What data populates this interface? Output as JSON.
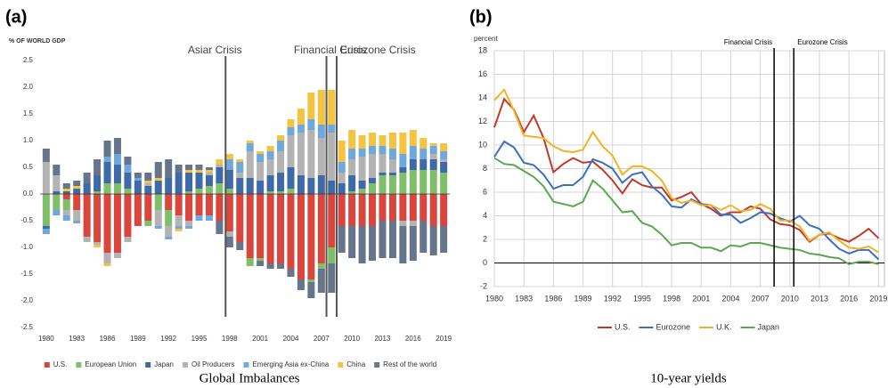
{
  "chart_data": [
    {
      "type": "stacked-bar",
      "panel_label": "(a)",
      "caption": "Global Imbalances",
      "y_label": "% OF WORLD GDP",
      "x": [
        1980,
        1981,
        1982,
        1983,
        1984,
        1985,
        1986,
        1987,
        1988,
        1989,
        1990,
        1991,
        1992,
        1993,
        1994,
        1995,
        1996,
        1997,
        1998,
        1999,
        2000,
        2001,
        2002,
        2003,
        2004,
        2005,
        2006,
        2007,
        2008,
        2009,
        2010,
        2011,
        2012,
        2013,
        2014,
        2015,
        2016,
        2017,
        2018,
        2019
      ],
      "xlim": [
        1979.4,
        2019.6
      ],
      "xticks": [
        1980,
        1983,
        1986,
        1989,
        1992,
        1995,
        1998,
        2001,
        2004,
        2007,
        2010,
        2013,
        2016,
        2019
      ],
      "ylim": [
        -2.5,
        2.5
      ],
      "yticks": [
        2.5,
        {
          "value": 2,
          "label": "2.0"
        },
        1.5,
        {
          "value": 1,
          "label": "1.0"
        },
        0.5,
        {
          "value": 0,
          "label": "0.0"
        },
        -0.5,
        {
          "value": -1,
          "label": "-1.0"
        },
        -1.5,
        {
          "value": -2,
          "label": "-2.0"
        },
        -2.5
      ],
      "grid": false,
      "series": [
        {
          "name": "U.S.",
          "color": "#d9463e",
          "values": [
            0,
            0,
            -0.1,
            -0.3,
            -0.8,
            -0.9,
            -1.1,
            -1.1,
            -0.8,
            -0.6,
            -0.5,
            0,
            -0.3,
            -0.4,
            -0.5,
            -0.4,
            -0.4,
            -0.5,
            -0.7,
            -0.9,
            -1.2,
            -1.2,
            -1.3,
            -1.3,
            -1.4,
            -1.6,
            -1.6,
            -1.3,
            -1.0,
            -0.6,
            -0.6,
            -0.6,
            -0.6,
            -0.5,
            -0.5,
            -0.5,
            -0.5,
            -0.5,
            -0.6,
            -0.6
          ]
        },
        {
          "name": "European Union",
          "color": "#7fbf6a",
          "values": [
            -0.6,
            -0.3,
            -0.2,
            0,
            0,
            0.05,
            0.2,
            0.2,
            0.1,
            0,
            -0.1,
            -0.3,
            -0.3,
            0,
            0.05,
            0.1,
            0.15,
            0.2,
            0.1,
            0,
            -0.15,
            -0.05,
            0.05,
            0.05,
            0.1,
            0,
            -0.05,
            -0.1,
            -0.3,
            0,
            0.05,
            0.1,
            0.2,
            0.35,
            0.35,
            0.4,
            0.45,
            0.45,
            0.45,
            0.4
          ]
        },
        {
          "name": "Japan",
          "color": "#3f6aa8",
          "values": [
            -0.05,
            0.05,
            0.05,
            0.1,
            0.2,
            0.3,
            0.4,
            0.35,
            0.3,
            0.25,
            0.15,
            0.25,
            0.3,
            0.4,
            0.35,
            0.3,
            0.2,
            0.3,
            0.35,
            0.3,
            0.3,
            0.25,
            0.3,
            0.35,
            0.4,
            0.35,
            0.3,
            0.35,
            0.25,
            0.2,
            0.3,
            0.15,
            0.1,
            0.05,
            0.05,
            0.1,
            0.2,
            0.2,
            0.2,
            0.2
          ]
        },
        {
          "name": "Oil Producers",
          "color": "#b3b3b3",
          "values": [
            0.6,
            0.3,
            -0.1,
            -0.2,
            -0.1,
            -0.05,
            -0.2,
            -0.1,
            -0.1,
            0,
            0.05,
            -0.3,
            -0.2,
            -0.2,
            -0.1,
            0,
            0.05,
            0.05,
            -0.1,
            0.1,
            0.5,
            0.35,
            0.3,
            0.4,
            0.6,
            0.8,
            0.9,
            0.7,
            0.9,
            0.2,
            0.3,
            0.45,
            0.45,
            0.35,
            0.25,
            -0.1,
            -0.1,
            0,
            0.1,
            0.05
          ]
        },
        {
          "name": "Emerging Asia ex-China",
          "color": "#6fa8dc",
          "values": [
            -0.1,
            -0.1,
            -0.1,
            -0.05,
            0,
            0,
            0.1,
            0.2,
            0.15,
            0.05,
            0,
            -0.05,
            -0.05,
            -0.05,
            -0.05,
            -0.1,
            -0.1,
            0,
            0.2,
            0.2,
            0.15,
            0.15,
            0.15,
            0.2,
            0.15,
            0.15,
            0.2,
            0.25,
            0.15,
            0.2,
            0.2,
            0.15,
            0.15,
            0.15,
            0.2,
            0.25,
            0.25,
            0.2,
            0.15,
            0.15
          ]
        },
        {
          "name": "China",
          "color": "#f5c342",
          "values": [
            0,
            0,
            0.05,
            0.05,
            0,
            -0.05,
            -0.05,
            0,
            0,
            0,
            0.05,
            0.05,
            0,
            -0.05,
            0.05,
            0.05,
            0.05,
            0.1,
            0.1,
            0.05,
            0.05,
            0.05,
            0.1,
            0.1,
            0.15,
            0.3,
            0.5,
            0.65,
            0.65,
            0.4,
            0.35,
            0.25,
            0.25,
            0.2,
            0.3,
            0.4,
            0.3,
            0.2,
            0.05,
            0.15
          ]
        },
        {
          "name": "Rest of the world",
          "color": "#66758c",
          "values": [
            0.25,
            0.2,
            0.1,
            0.1,
            0.2,
            0.3,
            0.3,
            0.3,
            0.15,
            0.1,
            0.15,
            0.3,
            0.35,
            0.15,
            0.1,
            0.1,
            0.05,
            -0.25,
            -0.2,
            -0.15,
            0,
            -0.1,
            -0.1,
            -0.1,
            -0.15,
            -0.2,
            -0.3,
            -0.45,
            -0.55,
            -0.5,
            -0.6,
            -0.7,
            -0.65,
            -0.7,
            -0.7,
            -0.7,
            -0.65,
            -0.6,
            -0.55,
            -0.5
          ]
        }
      ],
      "annotations": [
        {
          "label": "Asiar Crisis",
          "x": 1997.6
        },
        {
          "label": "Financial Crisis",
          "x": 2007.5
        },
        {
          "label": "Eurozone Crisis",
          "x": 2008.5
        }
      ]
    },
    {
      "type": "line",
      "panel_label": "(b)",
      "caption": "10-year yields",
      "y_label": "percent",
      "x": [
        1980,
        1981,
        1982,
        1983,
        1984,
        1985,
        1986,
        1987,
        1988,
        1989,
        1990,
        1991,
        1992,
        1993,
        1994,
        1995,
        1996,
        1997,
        1998,
        1999,
        2000,
        2001,
        2002,
        2003,
        2004,
        2005,
        2006,
        2007,
        2008,
        2009,
        2010,
        2011,
        2012,
        2013,
        2014,
        2015,
        2016,
        2017,
        2018,
        2019
      ],
      "xlim": [
        1980,
        2019.6
      ],
      "xticks": [
        1980,
        1983,
        1986,
        1989,
        1992,
        1995,
        1998,
        2001,
        2004,
        2007,
        2010,
        2013,
        2016,
        2019
      ],
      "ylim": [
        -2,
        18
      ],
      "yticks": [
        -2,
        0,
        2,
        4,
        6,
        8,
        10,
        12,
        14,
        16,
        18
      ],
      "grid": true,
      "series": [
        {
          "name": "U.S.",
          "color": "#c0392b",
          "values": [
            11.5,
            13.9,
            13.0,
            11.1,
            12.5,
            10.6,
            7.7,
            8.4,
            8.9,
            8.5,
            8.6,
            7.9,
            7.0,
            5.9,
            7.1,
            6.6,
            6.4,
            6.4,
            5.3,
            5.6,
            6.0,
            5.0,
            4.6,
            4.0,
            4.3,
            4.3,
            4.8,
            4.6,
            3.7,
            3.3,
            3.2,
            2.8,
            1.8,
            2.4,
            2.5,
            2.1,
            1.8,
            2.3,
            2.9,
            2.1
          ]
        },
        {
          "name": "Eurozone",
          "color": "#3b6fbf",
          "values": [
            9.0,
            10.3,
            9.8,
            8.5,
            8.3,
            7.5,
            6.3,
            6.6,
            6.6,
            7.3,
            8.8,
            8.5,
            8.0,
            6.8,
            7.5,
            7.7,
            6.5,
            5.8,
            4.8,
            4.7,
            5.4,
            5.0,
            4.9,
            4.1,
            4.1,
            3.4,
            3.8,
            4.3,
            4.2,
            3.8,
            3.5,
            4.0,
            3.2,
            2.9,
            2.0,
            1.2,
            0.8,
            1.1,
            1.1,
            0.3
          ]
        },
        {
          "name": "U.K.",
          "color": "#f0b323",
          "values": [
            13.8,
            14.7,
            12.9,
            10.8,
            10.7,
            10.6,
            9.9,
            9.5,
            9.4,
            9.6,
            11.1,
            9.9,
            9.1,
            7.5,
            8.2,
            8.2,
            7.8,
            7.0,
            5.5,
            5.1,
            5.3,
            4.9,
            4.9,
            4.5,
            4.9,
            4.4,
            4.5,
            5.0,
            4.6,
            3.6,
            3.6,
            3.1,
            1.9,
            2.4,
            2.6,
            1.9,
            1.3,
            1.2,
            1.4,
            0.9
          ]
        },
        {
          "name": "Japan",
          "color": "#5aa84f",
          "values": [
            8.9,
            8.4,
            8.3,
            7.8,
            7.3,
            6.5,
            5.2,
            5.0,
            4.8,
            5.2,
            7.0,
            6.3,
            5.3,
            4.3,
            4.4,
            3.4,
            3.1,
            2.4,
            1.5,
            1.7,
            1.7,
            1.3,
            1.3,
            1.0,
            1.5,
            1.4,
            1.7,
            1.7,
            1.5,
            1.3,
            1.2,
            1.1,
            0.8,
            0.7,
            0.5,
            0.4,
            -0.1,
            0.1,
            0.1,
            -0.1
          ]
        }
      ],
      "annotations": [
        {
          "label": "Financial Crisis",
          "x": 2008.4
        },
        {
          "label": "Eurozone Crisis",
          "x": 2010.4
        }
      ]
    }
  ]
}
